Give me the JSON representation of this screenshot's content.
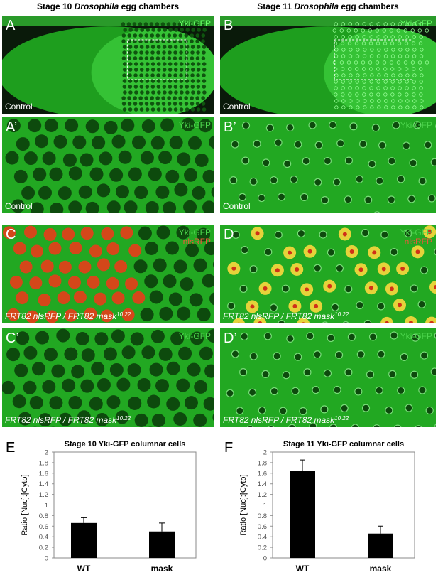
{
  "column_titles": [
    {
      "prefix": "Stage 10 ",
      "italic": "Drosophila",
      "suffix": " egg chambers"
    },
    {
      "prefix": "Stage 11 ",
      "italic": "Drosophila",
      "suffix": " egg chambers"
    }
  ],
  "panels": [
    {
      "label": "A",
      "channel": "Yki-GFP",
      "caption": "Control"
    },
    {
      "label": "B",
      "channel": "Yki-GFP",
      "caption": "Control"
    },
    {
      "label": "A’",
      "channel": "Yki-GFP",
      "caption": "Control"
    },
    {
      "label": "B’",
      "channel": "Yki-GFP",
      "caption": "Control"
    },
    {
      "label": "C",
      "channel": "Yki-GFP",
      "channel2": "nlsRFP",
      "caption": "FRT82 nlsRFP / FRT82 mask",
      "caption_sup": "10.22"
    },
    {
      "label": "D",
      "channel": "Yki-GFP",
      "channel2": "nlsRFP",
      "caption": "FRT82 nlsRFP / FRT82 mask",
      "caption_sup": "10.22"
    },
    {
      "label": "C’",
      "channel": "Yki-GFP",
      "caption": "FRT82 nlsRFP / FRT82 mask",
      "caption_sup": "10.22"
    },
    {
      "label": "D’",
      "channel": "Yki-GFP",
      "caption": "FRT82 nlsRFP / FRT82 mask",
      "caption_sup": "10.22"
    }
  ],
  "chart_data": [
    {
      "type": "bar",
      "panel_label": "E",
      "title": "Stage 10 Yki-GFP columnar cells",
      "y_label": "Ratio [Nuc]:[Cyto]",
      "categories": [
        "WT",
        "mask"
      ],
      "values": [
        0.66,
        0.5
      ],
      "errors": [
        0.1,
        0.16
      ],
      "color": "#000000",
      "ylim": [
        0,
        2
      ],
      "yticks": [
        0,
        0.2,
        0.4,
        0.6,
        0.8,
        1,
        1.2,
        1.4,
        1.6,
        1.8,
        2
      ]
    },
    {
      "type": "bar",
      "panel_label": "F",
      "title": "Stage 11 Yki-GFP columnar cells",
      "y_label": "Ratio [Nuc]:[Cyto]",
      "categories": [
        "WT",
        "mask"
      ],
      "values": [
        1.65,
        0.46
      ],
      "errors": [
        0.2,
        0.14
      ],
      "color": "#000000",
      "ylim": [
        0,
        2
      ],
      "yticks": [
        0,
        0.2,
        0.4,
        0.6,
        0.8,
        1,
        1.2,
        1.4,
        1.6,
        1.8,
        2
      ]
    }
  ]
}
